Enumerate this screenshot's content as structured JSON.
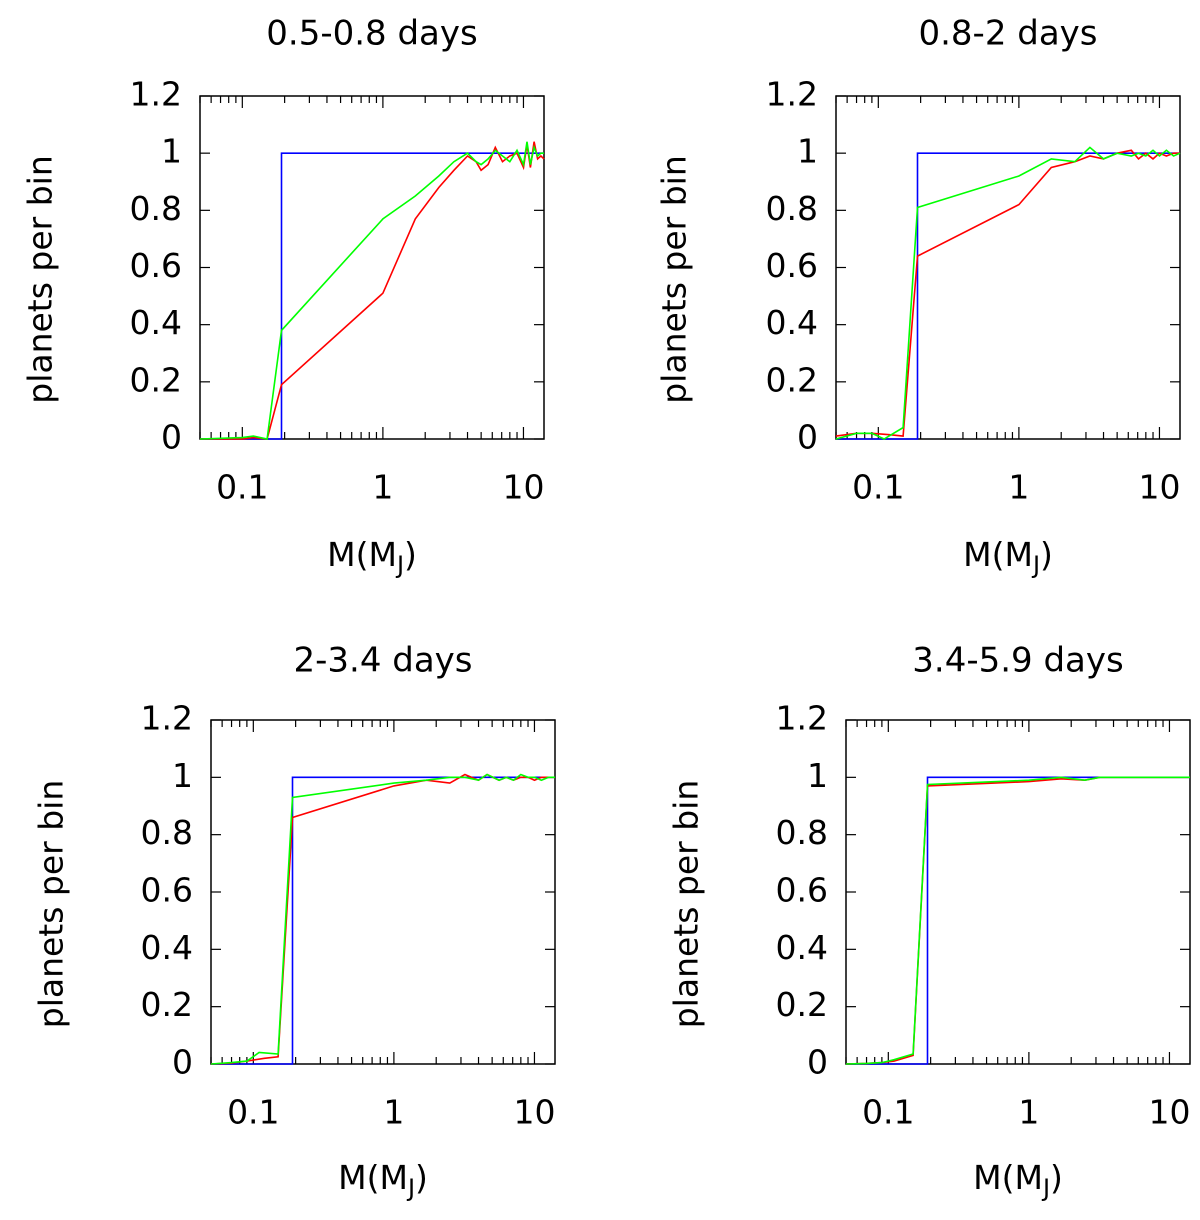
{
  "chart_data": [
    {
      "type": "line",
      "title": "0.5-0.8 days",
      "xlabel": "M(M",
      "xlabel_sub": "J",
      "xlabel_close": ")",
      "ylabel": "planets per bin",
      "xscale": "log",
      "xlim": [
        0.05,
        14
      ],
      "ylim": [
        0,
        1.2
      ],
      "yticks": [
        "0",
        "0.2",
        "0.4",
        "0.6",
        "0.8",
        "1",
        "1.2"
      ],
      "xticks": [
        "0.1",
        "1",
        "10"
      ],
      "series": [
        {
          "name": "step",
          "color": "#0000ff",
          "points": [
            [
              0.05,
              0
            ],
            [
              0.19,
              0
            ],
            [
              0.19,
              1
            ],
            [
              14,
              1
            ]
          ]
        },
        {
          "name": "red",
          "color": "#ff0000",
          "points": [
            [
              0.05,
              0
            ],
            [
              0.1,
              0
            ],
            [
              0.12,
              0.005
            ],
            [
              0.15,
              0
            ],
            [
              0.19,
              0.19
            ],
            [
              1.0,
              0.51
            ],
            [
              1.7,
              0.77
            ],
            [
              2.5,
              0.88
            ],
            [
              3.2,
              0.94
            ],
            [
              4.0,
              0.99
            ],
            [
              4.6,
              0.97
            ],
            [
              5.0,
              0.94
            ],
            [
              5.6,
              0.96
            ],
            [
              6.3,
              1.02
            ],
            [
              7.1,
              0.97
            ],
            [
              8.0,
              0.99
            ],
            [
              9.0,
              1.0
            ],
            [
              10.0,
              0.95
            ],
            [
              10.6,
              1.03
            ],
            [
              11.2,
              0.95
            ],
            [
              11.9,
              1.04
            ],
            [
              12.6,
              0.98
            ],
            [
              13.3,
              0.99
            ],
            [
              14,
              0.98
            ]
          ]
        },
        {
          "name": "green",
          "color": "#00ff00",
          "points": [
            [
              0.05,
              0
            ],
            [
              0.1,
              0.005
            ],
            [
              0.12,
              0.01
            ],
            [
              0.15,
              0
            ],
            [
              0.19,
              0.38
            ],
            [
              1.0,
              0.77
            ],
            [
              1.7,
              0.85
            ],
            [
              2.5,
              0.92
            ],
            [
              3.2,
              0.97
            ],
            [
              4.0,
              1.0
            ],
            [
              4.6,
              0.97
            ],
            [
              5.0,
              0.96
            ],
            [
              5.6,
              0.98
            ],
            [
              6.3,
              1.01
            ],
            [
              7.1,
              0.99
            ],
            [
              8.0,
              0.97
            ],
            [
              9.0,
              1.01
            ],
            [
              10.0,
              0.96
            ],
            [
              10.6,
              1.04
            ],
            [
              11.2,
              0.96
            ],
            [
              11.9,
              1.02
            ],
            [
              12.6,
              0.99
            ],
            [
              13.3,
              1.0
            ],
            [
              14,
              1.0
            ]
          ]
        }
      ]
    },
    {
      "type": "line",
      "title": "0.8-2 days",
      "xlabel": "M(M",
      "xlabel_sub": "J",
      "xlabel_close": ")",
      "ylabel": "planets per bin",
      "xscale": "log",
      "xlim": [
        0.05,
        14
      ],
      "ylim": [
        0,
        1.2
      ],
      "yticks": [
        "0",
        "0.2",
        "0.4",
        "0.6",
        "0.8",
        "1",
        "1.2"
      ],
      "xticks": [
        "0.1",
        "1",
        "10"
      ],
      "series": [
        {
          "name": "step",
          "color": "#0000ff",
          "points": [
            [
              0.05,
              0
            ],
            [
              0.19,
              0
            ],
            [
              0.19,
              1
            ],
            [
              14,
              1
            ]
          ]
        },
        {
          "name": "red",
          "color": "#ff0000",
          "points": [
            [
              0.05,
              0.01
            ],
            [
              0.07,
              0.02
            ],
            [
              0.09,
              0.02
            ],
            [
              0.12,
              0.015
            ],
            [
              0.15,
              0.01
            ],
            [
              0.19,
              0.64
            ],
            [
              1.0,
              0.82
            ],
            [
              1.7,
              0.95
            ],
            [
              2.5,
              0.97
            ],
            [
              3.2,
              0.99
            ],
            [
              4.0,
              0.98
            ],
            [
              5.0,
              1.0
            ],
            [
              6.3,
              1.01
            ],
            [
              7.1,
              0.98
            ],
            [
              8.0,
              1.0
            ],
            [
              9.0,
              0.98
            ],
            [
              10.0,
              1.0
            ],
            [
              11.2,
              0.99
            ],
            [
              12.6,
              1.0
            ],
            [
              14,
              1.0
            ]
          ]
        },
        {
          "name": "green",
          "color": "#00ff00",
          "points": [
            [
              0.05,
              0
            ],
            [
              0.07,
              0.02
            ],
            [
              0.09,
              0.02
            ],
            [
              0.11,
              0
            ],
            [
              0.15,
              0.04
            ],
            [
              0.19,
              0.81
            ],
            [
              1.0,
              0.92
            ],
            [
              1.7,
              0.98
            ],
            [
              2.5,
              0.97
            ],
            [
              3.2,
              1.02
            ],
            [
              4.0,
              0.98
            ],
            [
              5.0,
              1.0
            ],
            [
              6.3,
              0.99
            ],
            [
              7.1,
              1.0
            ],
            [
              8.0,
              0.99
            ],
            [
              9.0,
              1.01
            ],
            [
              10.0,
              0.99
            ],
            [
              11.2,
              1.01
            ],
            [
              12.6,
              0.99
            ],
            [
              14,
              1.0
            ]
          ]
        }
      ]
    },
    {
      "type": "line",
      "title": "2-3.4 days",
      "xlabel": "M(M",
      "xlabel_sub": "J",
      "xlabel_close": ")",
      "ylabel": "planets per bin",
      "xscale": "log",
      "xlim": [
        0.05,
        14
      ],
      "ylim": [
        0,
        1.2
      ],
      "yticks": [
        "0",
        "0.2",
        "0.4",
        "0.6",
        "0.8",
        "1",
        "1.2"
      ],
      "xticks": [
        "0.1",
        "1",
        "10"
      ],
      "series": [
        {
          "name": "step",
          "color": "#0000ff",
          "points": [
            [
              0.05,
              0
            ],
            [
              0.19,
              0
            ],
            [
              0.19,
              1
            ],
            [
              14,
              1
            ]
          ]
        },
        {
          "name": "red",
          "color": "#ff0000",
          "points": [
            [
              0.05,
              0
            ],
            [
              0.07,
              0.003
            ],
            [
              0.09,
              0.01
            ],
            [
              0.12,
              0.02
            ],
            [
              0.15,
              0.025
            ],
            [
              0.19,
              0.86
            ],
            [
              1.0,
              0.97
            ],
            [
              1.7,
              0.99
            ],
            [
              2.5,
              0.98
            ],
            [
              3.2,
              1.01
            ],
            [
              4.0,
              0.99
            ],
            [
              4.6,
              1.01
            ],
            [
              5.6,
              0.99
            ],
            [
              6.3,
              1.0
            ],
            [
              7.1,
              0.99
            ],
            [
              8.0,
              1.0
            ],
            [
              9.0,
              1.0
            ],
            [
              10.0,
              0.99
            ],
            [
              11.2,
              1.0
            ],
            [
              12.6,
              1.0
            ],
            [
              14,
              1.0
            ]
          ]
        },
        {
          "name": "green",
          "color": "#00ff00",
          "points": [
            [
              0.05,
              0
            ],
            [
              0.07,
              0.005
            ],
            [
              0.09,
              0.01
            ],
            [
              0.11,
              0.04
            ],
            [
              0.15,
              0.035
            ],
            [
              0.19,
              0.93
            ],
            [
              1.0,
              0.98
            ],
            [
              1.7,
              0.99
            ],
            [
              2.5,
              1.0
            ],
            [
              3.2,
              1.0
            ],
            [
              4.0,
              0.99
            ],
            [
              4.6,
              1.01
            ],
            [
              5.6,
              0.99
            ],
            [
              6.3,
              1.0
            ],
            [
              7.1,
              0.99
            ],
            [
              8.0,
              1.01
            ],
            [
              9.0,
              1.0
            ],
            [
              10.0,
              1.0
            ],
            [
              11.2,
              0.99
            ],
            [
              12.6,
              1.0
            ],
            [
              14,
              1.0
            ]
          ]
        }
      ]
    },
    {
      "type": "line",
      "title": "3.4-5.9 days",
      "xlabel": "M(M",
      "xlabel_sub": "J",
      "xlabel_close": ")",
      "ylabel": "planets per bin",
      "xscale": "log",
      "xlim": [
        0.05,
        14
      ],
      "ylim": [
        0,
        1.2
      ],
      "yticks": [
        "0",
        "0.2",
        "0.4",
        "0.6",
        "0.8",
        "1",
        "1.2"
      ],
      "xticks": [
        "0.1",
        "1",
        "10"
      ],
      "series": [
        {
          "name": "step",
          "color": "#0000ff",
          "points": [
            [
              0.05,
              0
            ],
            [
              0.19,
              0
            ],
            [
              0.19,
              1
            ],
            [
              14,
              1
            ]
          ]
        },
        {
          "name": "red",
          "color": "#ff0000",
          "points": [
            [
              0.05,
              0
            ],
            [
              0.07,
              0.002
            ],
            [
              0.09,
              0.005
            ],
            [
              0.11,
              0.01
            ],
            [
              0.15,
              0.03
            ],
            [
              0.19,
              0.97
            ],
            [
              1.0,
              0.985
            ],
            [
              1.7,
              0.995
            ],
            [
              2.5,
              0.99
            ],
            [
              3.2,
              1.0
            ],
            [
              4.0,
              1.0
            ],
            [
              5.0,
              1.0
            ],
            [
              6.3,
              1.0
            ],
            [
              8.0,
              1.0
            ],
            [
              10.0,
              1.0
            ],
            [
              12.6,
              1.0
            ],
            [
              14,
              1.0
            ]
          ]
        },
        {
          "name": "green",
          "color": "#00ff00",
          "points": [
            [
              0.05,
              0
            ],
            [
              0.07,
              0.002
            ],
            [
              0.09,
              0.005
            ],
            [
              0.11,
              0.015
            ],
            [
              0.15,
              0.035
            ],
            [
              0.19,
              0.975
            ],
            [
              1.0,
              0.99
            ],
            [
              1.7,
              1.0
            ],
            [
              2.5,
              0.99
            ],
            [
              3.2,
              1.0
            ],
            [
              4.0,
              1.0
            ],
            [
              5.0,
              1.0
            ],
            [
              6.3,
              1.0
            ],
            [
              8.0,
              1.0
            ],
            [
              10.0,
              1.0
            ],
            [
              12.6,
              1.0
            ],
            [
              14,
              1.0
            ]
          ]
        }
      ]
    }
  ]
}
